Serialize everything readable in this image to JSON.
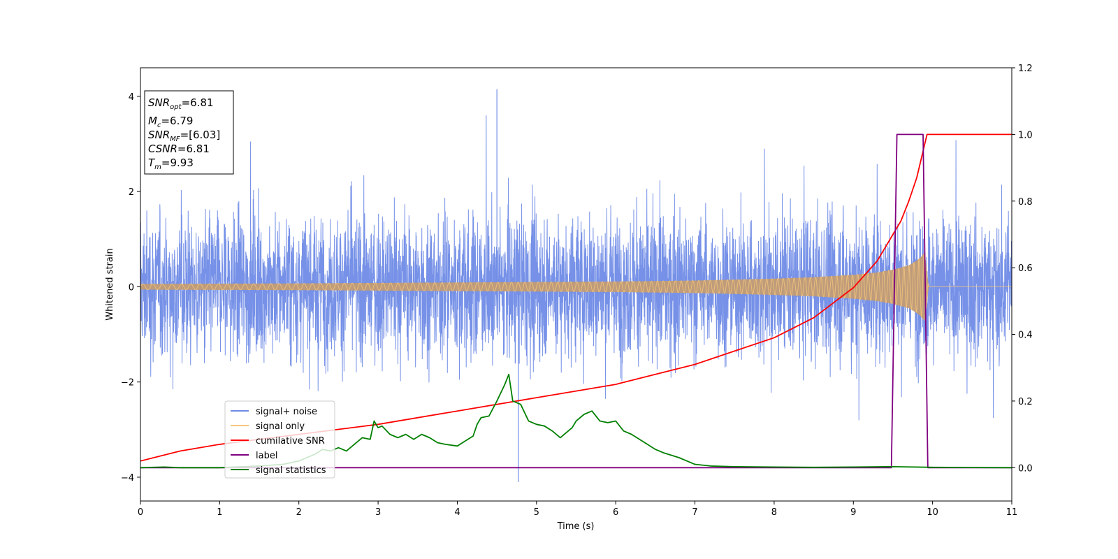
{
  "chart_data": {
    "type": "line",
    "xlabel": "Time (s)",
    "ylabel": "Whitened strain",
    "xlim": [
      0,
      11
    ],
    "ylim_left": [
      -4.5,
      4.6
    ],
    "ylim_right": [
      -0.1,
      1.2
    ],
    "x_ticks": [
      0,
      1,
      2,
      3,
      4,
      5,
      6,
      7,
      8,
      9,
      10,
      11
    ],
    "y_ticks_left": [
      -4,
      -2,
      0,
      2,
      4
    ],
    "y_ticks_right": [
      "0.0",
      "0.2",
      "0.4",
      "0.6",
      "0.8",
      "1.0",
      "1.2"
    ],
    "legend_position": "lower-left",
    "info_box": {
      "snr_opt": {
        "symbol": "SNR",
        "sub": "opt",
        "value": "=6.81"
      },
      "mc": {
        "symbol": "M",
        "sub": "c",
        "value": "=6.79"
      },
      "snr_mf": {
        "symbol": "SNR",
        "sub": "MF",
        "value": "=[6.03]"
      },
      "csnr": {
        "symbol": "CSNR",
        "sub": "",
        "value": "=6.81"
      },
      "tm": {
        "symbol": "T",
        "sub": "m",
        "value": "=9.93"
      }
    },
    "series": [
      {
        "name": "signal+ noise",
        "axis": "left",
        "color": "#6f8be6",
        "description_noise_amplitude": 1.6,
        "peak_max": 4.15,
        "peak_min": -4.1
      },
      {
        "name": "signal only",
        "axis": "left",
        "color": "#f5c57c",
        "envelope": {
          "x": [
            0,
            2,
            4,
            6,
            7,
            8,
            8.5,
            9,
            9.3,
            9.5,
            9.7,
            9.8,
            9.85,
            9.9,
            9.93,
            9.95,
            11
          ],
          "amp": [
            0.06,
            0.07,
            0.09,
            0.11,
            0.13,
            0.17,
            0.2,
            0.25,
            0.3,
            0.36,
            0.45,
            0.55,
            0.62,
            0.72,
            0.35,
            0,
            0
          ]
        }
      },
      {
        "name": "cumilative SNR",
        "axis": "right",
        "color": "#ff0000",
        "x": [
          0,
          0.5,
          1,
          2,
          3,
          4,
          5,
          6,
          6.5,
          7,
          7.5,
          8,
          8.5,
          9,
          9.3,
          9.5,
          9.6,
          9.7,
          9.8,
          9.85,
          9.9,
          9.93,
          10,
          11
        ],
        "y": [
          0.02,
          0.05,
          0.07,
          0.1,
          0.13,
          0.17,
          0.21,
          0.25,
          0.28,
          0.31,
          0.35,
          0.39,
          0.45,
          0.54,
          0.62,
          0.7,
          0.74,
          0.8,
          0.87,
          0.92,
          0.97,
          1.0,
          1.0,
          1.0
        ]
      },
      {
        "name": "label",
        "axis": "right",
        "color": "#800080",
        "x": [
          0,
          9.48,
          9.55,
          9.88,
          9.94,
          11
        ],
        "y": [
          0,
          0,
          1,
          1,
          0,
          0
        ]
      },
      {
        "name": "signal statistics",
        "axis": "right",
        "color": "#008000",
        "x": [
          0,
          0.3,
          0.5,
          1,
          1.5,
          1.8,
          2,
          2.2,
          2.3,
          2.4,
          2.5,
          2.6,
          2.7,
          2.8,
          2.9,
          2.95,
          3.0,
          3.05,
          3.15,
          3.25,
          3.35,
          3.45,
          3.55,
          3.65,
          3.75,
          3.85,
          4.0,
          4.1,
          4.2,
          4.25,
          4.3,
          4.4,
          4.5,
          4.6,
          4.65,
          4.7,
          4.8,
          4.9,
          5.0,
          5.1,
          5.2,
          5.3,
          5.4,
          5.45,
          5.5,
          5.6,
          5.7,
          5.8,
          5.9,
          6.0,
          6.1,
          6.2,
          6.3,
          6.4,
          6.5,
          6.6,
          6.8,
          7.0,
          7.2,
          7.5,
          8.0,
          8.5,
          9.0,
          9.5,
          10,
          11
        ],
        "y": [
          0,
          0.002,
          0,
          0,
          0.005,
          0.01,
          0.02,
          0.04,
          0.055,
          0.05,
          0.06,
          0.05,
          0.07,
          0.09,
          0.085,
          0.14,
          0.12,
          0.125,
          0.1,
          0.09,
          0.1,
          0.085,
          0.1,
          0.09,
          0.075,
          0.07,
          0.065,
          0.08,
          0.095,
          0.13,
          0.15,
          0.155,
          0.2,
          0.25,
          0.28,
          0.2,
          0.19,
          0.14,
          0.13,
          0.125,
          0.11,
          0.09,
          0.11,
          0.12,
          0.14,
          0.16,
          0.17,
          0.14,
          0.135,
          0.14,
          0.11,
          0.1,
          0.085,
          0.07,
          0.055,
          0.045,
          0.03,
          0.01,
          0.005,
          0.003,
          0.002,
          0.001,
          0.002,
          0.003,
          0.001,
          0
        ]
      }
    ]
  }
}
